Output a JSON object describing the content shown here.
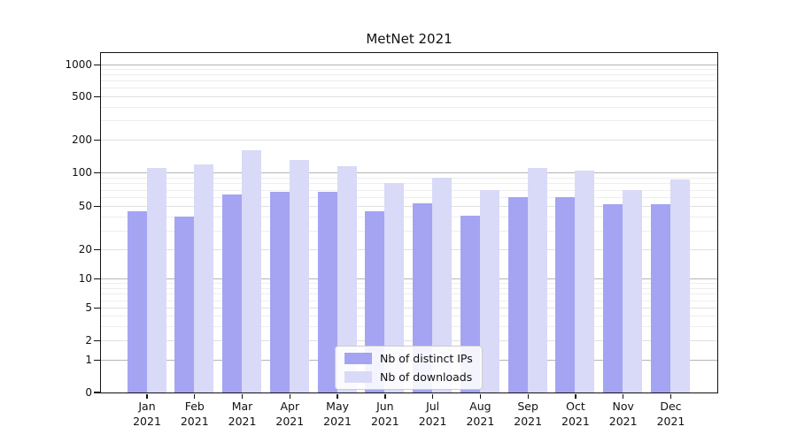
{
  "chart_data": {
    "type": "bar",
    "title": "MetNet 2021",
    "categories": [
      "Jan",
      "Feb",
      "Mar",
      "Apr",
      "May",
      "Jun",
      "Jul",
      "Aug",
      "Sep",
      "Oct",
      "Nov",
      "Dec"
    ],
    "category_year": "2021",
    "series": [
      {
        "name": "Nb of distinct IPs",
        "color": "#a4a4f3",
        "values": [
          45,
          40,
          63,
          67,
          67,
          45,
          53,
          41,
          60,
          60,
          52,
          52
        ]
      },
      {
        "name": "Nb of downloads",
        "color": "#d9d9f8",
        "values": [
          110,
          119,
          160,
          131,
          113,
          80,
          90,
          70,
          109,
          104,
          70,
          86
        ]
      }
    ],
    "yscale": "log",
    "y_tick_labels": [
      "0",
      "1",
      "2",
      "5",
      "10",
      "20",
      "50",
      "100",
      "200",
      "500",
      "1000"
    ],
    "y_ticks": [
      0,
      1,
      2,
      5,
      10,
      20,
      50,
      100,
      200,
      500,
      1000
    ],
    "major_gridline_values": [
      1,
      10,
      100,
      1000
    ],
    "minor_gridline_values": [
      2,
      5,
      20,
      50,
      200,
      500
    ],
    "faint_gridline_values": [
      3,
      4,
      6,
      7,
      8,
      9,
      30,
      40,
      60,
      70,
      80,
      90,
      300,
      400,
      600,
      700,
      800,
      900
    ],
    "xlabel": "",
    "ylabel": "",
    "grid": true,
    "legend_position": "lower center",
    "colors": {
      "axis": "#111111",
      "major_grid": "#b5b5b5",
      "minor_grid": "#e0e0e0",
      "legend_border": "#cccccc"
    }
  }
}
